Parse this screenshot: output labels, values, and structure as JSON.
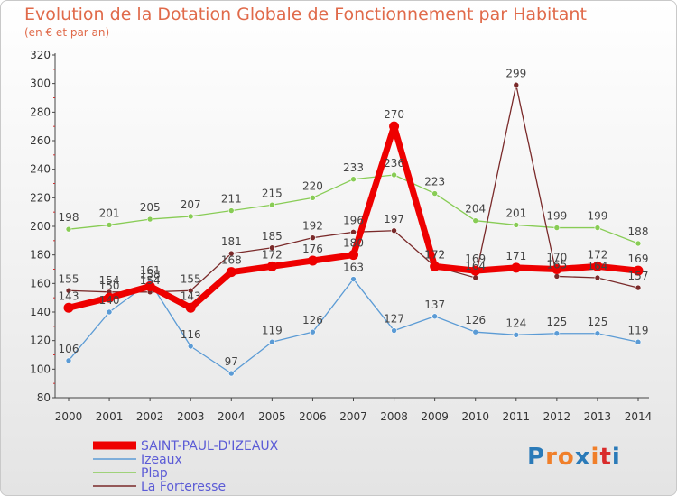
{
  "chart_data": {
    "type": "line",
    "title": "Evolution de la Dotation Globale de Fonctionnement par Habitant",
    "subtitle": "(en € et par an)",
    "xlabel": "",
    "ylabel": "",
    "ylim": [
      80,
      320
    ],
    "ytick_step": 20,
    "categories": [
      "2000",
      "2001",
      "2002",
      "2003",
      "2004",
      "2005",
      "2006",
      "2007",
      "2008",
      "2009",
      "2010",
      "2011",
      "2012",
      "2013",
      "2014"
    ],
    "series": [
      {
        "name": "Plap",
        "color": "#88cc55",
        "values": [
          198,
          201,
          205,
          207,
          211,
          215,
          220,
          233,
          236,
          223,
          204,
          201,
          199,
          199,
          188
        ]
      },
      {
        "name": "Izeaux",
        "color": "#5b9bd5",
        "values": [
          106,
          140,
          161,
          116,
          97,
          119,
          126,
          163,
          127,
          137,
          126,
          124,
          125,
          125,
          119
        ]
      },
      {
        "name": "La Forteresse",
        "color": "#7a2a2a",
        "values": [
          155,
          154,
          154,
          155,
          181,
          185,
          192,
          196,
          197,
          172,
          164,
          299,
          165,
          164,
          157
        ]
      },
      {
        "name": "SAINT-PAUL-D'IZEAUX",
        "color": "#ee0000",
        "values": [
          143,
          150,
          158,
          143,
          168,
          172,
          176,
          180,
          270,
          172,
          169,
          171,
          170,
          172,
          169
        ]
      }
    ],
    "legend": [
      "SAINT-PAUL-D'IZEAUX",
      "Izeaux",
      "Plap",
      "La Forteresse"
    ],
    "legend_position": "bottom-left",
    "grid": false
  },
  "logo": {
    "text": "Proxiti",
    "letter_colors": [
      "#2a7ab8",
      "#f07f2a",
      "#f07f2a",
      "#2a7ab8",
      "#f07f2a",
      "#d92b2b",
      "#2a7ab8"
    ]
  }
}
